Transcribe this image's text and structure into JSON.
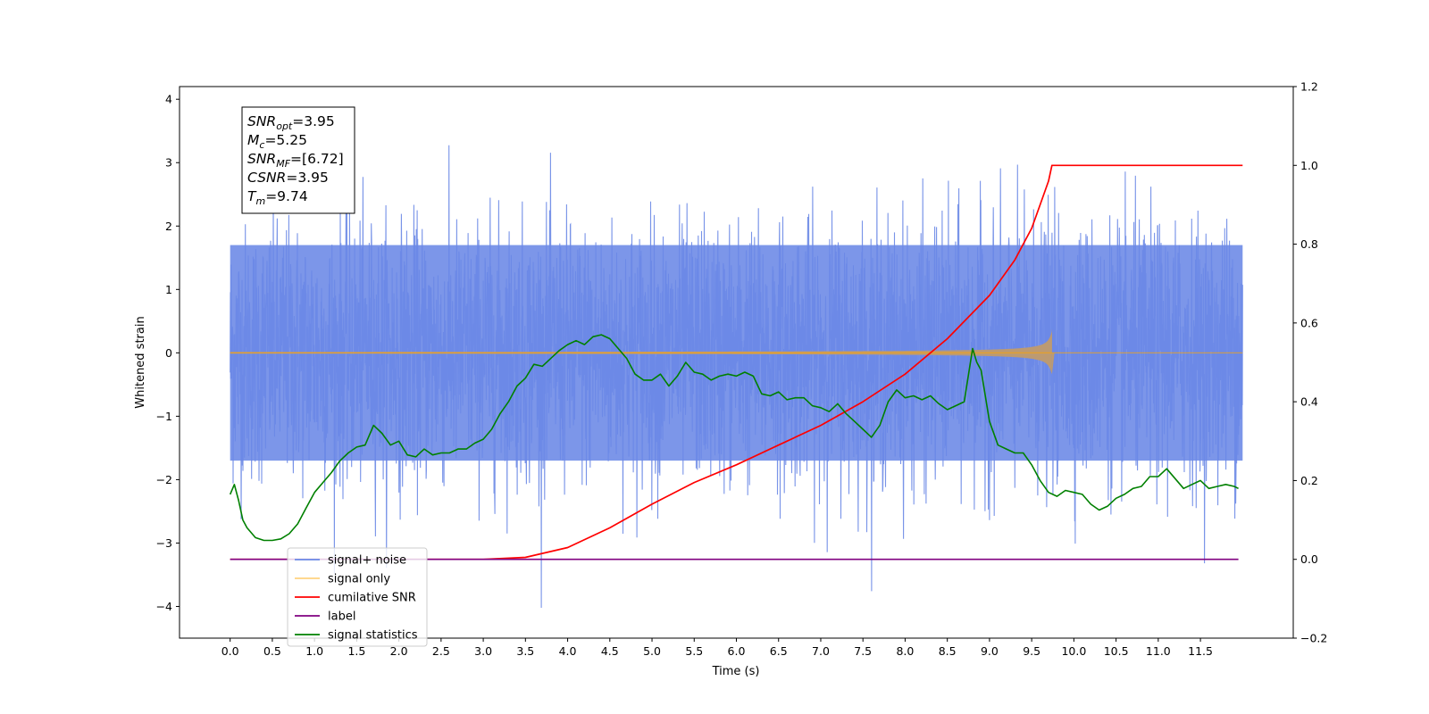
{
  "chart_data": {
    "type": "line",
    "xlabel": "Time (s)",
    "ylabel_left": "Whitened strain",
    "ylabel_right": "",
    "xlim": [
      -0.6,
      12.6
    ],
    "ylim_left": [
      -4.5,
      4.2
    ],
    "ylim_right": [
      -0.2,
      1.2
    ],
    "x_ticks": [
      "0.0",
      "0.5",
      "1.0",
      "1.5",
      "2.0",
      "2.5",
      "3.0",
      "3.5",
      "4.0",
      "4.5",
      "5.0",
      "5.5",
      "6.0",
      "6.5",
      "7.0",
      "7.5",
      "8.0",
      "8.5",
      "9.0",
      "9.5",
      "10.0",
      "10.5",
      "11.0",
      "11.5"
    ],
    "y_ticks_left": [
      "4",
      "3",
      "2",
      "1",
      "0",
      "−1",
      "−2",
      "−3",
      "−4"
    ],
    "y_ticks_right": [
      "1.2",
      "1.0",
      "0.8",
      "0.6",
      "0.4",
      "0.2",
      "0.0",
      "−0.2"
    ],
    "grid": false,
    "legend_position": "lower-left",
    "colors": {
      "signal_noise": "#6a88e6",
      "signal_only": "#ffa500",
      "signal_only_envelope": "#bc9a72",
      "cumulative_snr": "#ff0000",
      "label": "#800080",
      "signal_statistics": "#008000"
    },
    "annotation_lines": [
      {
        "main": "SNR",
        "sub": "opt",
        "rest": "=3.95"
      },
      {
        "main": "M",
        "sub": "c",
        "rest": "=5.25"
      },
      {
        "main": "SNR",
        "sub": "MF",
        "rest": "=[6.72]"
      },
      {
        "main": "CSNR",
        "sub": "",
        "rest": "=3.95"
      },
      {
        "main": "T",
        "sub": "m",
        "rest": "=9.74"
      }
    ],
    "legend": [
      {
        "label": "signal+ noise",
        "color": "#6a88e6"
      },
      {
        "label": "signal only",
        "color": "#ffa500"
      },
      {
        "label": "cumilative SNR",
        "color": "#ff0000"
      },
      {
        "label": "label",
        "color": "#800080"
      },
      {
        "label": "signal statistics",
        "color": "#008000"
      }
    ],
    "series": [
      {
        "name": "signal+ noise",
        "axis": "left",
        "kind": "noise",
        "x_range": [
          0.0,
          12.0
        ],
        "band": [
          -1.7,
          1.7
        ],
        "max": 3.8,
        "min": -4.1
      },
      {
        "name": "signal only",
        "axis": "left",
        "kind": "chirp",
        "x_range": [
          0.0,
          9.74
        ],
        "merger_time": 9.74,
        "peak_amplitude": 0.38,
        "post_merger_end": 12.0
      },
      {
        "name": "cumilative SNR",
        "axis": "right",
        "x": [
          0.0,
          3.0,
          3.5,
          4.0,
          4.5,
          5.0,
          5.5,
          6.0,
          6.5,
          7.0,
          7.5,
          8.0,
          8.5,
          9.0,
          9.3,
          9.5,
          9.6,
          9.7,
          9.74,
          12.0
        ],
        "y": [
          0.0,
          0.0,
          0.005,
          0.03,
          0.08,
          0.14,
          0.195,
          0.24,
          0.29,
          0.34,
          0.4,
          0.47,
          0.56,
          0.67,
          0.76,
          0.84,
          0.9,
          0.96,
          1.0,
          1.0
        ]
      },
      {
        "name": "label",
        "axis": "right",
        "x": [
          0.0,
          11.95
        ],
        "y": [
          0.0,
          0.0
        ]
      },
      {
        "name": "signal statistics",
        "axis": "right",
        "x": [
          0.0,
          0.05,
          0.1,
          0.15,
          0.2,
          0.3,
          0.4,
          0.5,
          0.6,
          0.7,
          0.8,
          0.9,
          1.0,
          1.1,
          1.2,
          1.3,
          1.4,
          1.5,
          1.6,
          1.7,
          1.8,
          1.9,
          2.0,
          2.1,
          2.2,
          2.3,
          2.4,
          2.5,
          2.6,
          2.7,
          2.8,
          2.9,
          3.0,
          3.1,
          3.2,
          3.3,
          3.4,
          3.5,
          3.6,
          3.7,
          3.8,
          3.9,
          4.0,
          4.1,
          4.2,
          4.3,
          4.4,
          4.5,
          4.6,
          4.7,
          4.8,
          4.9,
          5.0,
          5.1,
          5.2,
          5.3,
          5.4,
          5.5,
          5.6,
          5.7,
          5.8,
          5.9,
          6.0,
          6.1,
          6.2,
          6.3,
          6.4,
          6.5,
          6.6,
          6.7,
          6.8,
          6.9,
          7.0,
          7.1,
          7.2,
          7.3,
          7.4,
          7.5,
          7.6,
          7.7,
          7.8,
          7.9,
          8.0,
          8.1,
          8.2,
          8.3,
          8.4,
          8.5,
          8.6,
          8.7,
          8.8,
          8.85,
          8.9,
          9.0,
          9.1,
          9.2,
          9.3,
          9.4,
          9.5,
          9.6,
          9.7,
          9.8,
          9.9,
          10.0,
          10.1,
          10.2,
          10.3,
          10.4,
          10.5,
          10.6,
          10.7,
          10.8,
          10.9,
          11.0,
          11.1,
          11.2,
          11.3,
          11.4,
          11.5,
          11.6,
          11.7,
          11.8,
          11.9,
          11.95
        ],
        "y": [
          0.165,
          0.19,
          0.15,
          0.1,
          0.08,
          0.055,
          0.048,
          0.048,
          0.052,
          0.065,
          0.09,
          0.13,
          0.17,
          0.195,
          0.22,
          0.25,
          0.27,
          0.285,
          0.29,
          0.34,
          0.32,
          0.29,
          0.3,
          0.265,
          0.26,
          0.28,
          0.265,
          0.27,
          0.27,
          0.28,
          0.28,
          0.295,
          0.305,
          0.33,
          0.37,
          0.4,
          0.44,
          0.46,
          0.495,
          0.49,
          0.51,
          0.53,
          0.545,
          0.555,
          0.545,
          0.565,
          0.57,
          0.56,
          0.535,
          0.51,
          0.47,
          0.455,
          0.455,
          0.47,
          0.44,
          0.465,
          0.5,
          0.475,
          0.47,
          0.455,
          0.465,
          0.47,
          0.465,
          0.475,
          0.465,
          0.42,
          0.415,
          0.425,
          0.405,
          0.41,
          0.41,
          0.39,
          0.385,
          0.375,
          0.395,
          0.37,
          0.35,
          0.33,
          0.31,
          0.34,
          0.4,
          0.43,
          0.41,
          0.415,
          0.405,
          0.415,
          0.395,
          0.38,
          0.39,
          0.4,
          0.535,
          0.5,
          0.48,
          0.35,
          0.29,
          0.28,
          0.27,
          0.27,
          0.24,
          0.2,
          0.17,
          0.16,
          0.175,
          0.17,
          0.165,
          0.14,
          0.125,
          0.135,
          0.155,
          0.165,
          0.18,
          0.185,
          0.21,
          0.21,
          0.23,
          0.205,
          0.18,
          0.19,
          0.2,
          0.18,
          0.185,
          0.19,
          0.185,
          0.18
        ]
      }
    ]
  }
}
